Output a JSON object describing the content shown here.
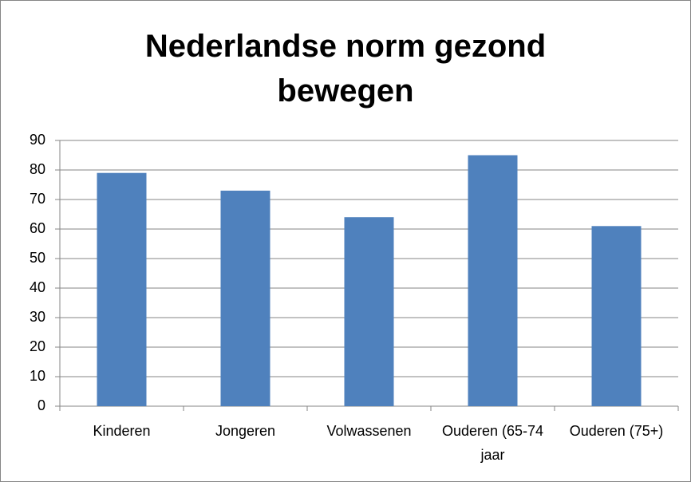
{
  "chart_data": {
    "type": "bar",
    "title": "Nederlandse norm gezond bewegen",
    "categories": [
      "Kinderen",
      "Jongeren",
      "Volwassenen",
      "Ouderen (65-74 jaar",
      "Ouderen (75+)"
    ],
    "values": [
      79,
      73,
      64,
      85,
      61
    ],
    "color": "#4f81bd",
    "ylim": [
      0,
      90
    ],
    "yticks": [
      0,
      10,
      20,
      30,
      40,
      50,
      60,
      70,
      80,
      90
    ],
    "grid": true
  }
}
